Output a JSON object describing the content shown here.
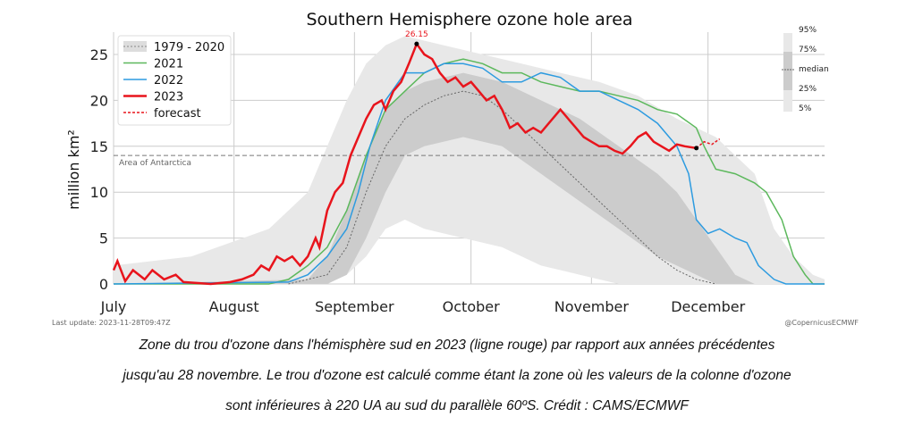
{
  "chart_data": {
    "type": "line",
    "title": "Southern Hemisphere ozone hole area",
    "ylabel": "million km²",
    "xlabel": "",
    "ylim": [
      0,
      27
    ],
    "xlim_days_from_jul1": [
      0,
      183
    ],
    "yticks": [
      0,
      5,
      10,
      15,
      20,
      25
    ],
    "xticks": [
      {
        "label": "July",
        "day": 0
      },
      {
        "label": "August",
        "day": 31
      },
      {
        "label": "September",
        "day": 62
      },
      {
        "label": "October",
        "day": 92
      },
      {
        "label": "November",
        "day": 123
      },
      {
        "label": "December",
        "day": 153
      }
    ],
    "reference_line": {
      "label": "Area of Antarctica",
      "value": 14
    },
    "peak_annotation": {
      "label": "26.15",
      "day": 78,
      "value": 26.15
    },
    "legend": [
      "1979 - 2020",
      "2021",
      "2022",
      "2023",
      "forecast"
    ],
    "percentile_legend": [
      "95%",
      "75%",
      "median",
      "25%",
      "5%"
    ],
    "colors": {
      "2021": "#5cb85c",
      "2022": "#2d9be0",
      "2023": "#e8141c",
      "forecast": "#e8141c",
      "median": "#666666",
      "band_outer": "#e8e8e8",
      "band_inner": "#cccccc"
    },
    "bands": {
      "p95": [
        [
          0,
          2
        ],
        [
          20,
          3
        ],
        [
          40,
          6
        ],
        [
          50,
          10
        ],
        [
          55,
          15
        ],
        [
          60,
          20
        ],
        [
          65,
          24
        ],
        [
          70,
          26
        ],
        [
          75,
          27
        ],
        [
          85,
          26
        ],
        [
          95,
          25
        ],
        [
          105,
          24
        ],
        [
          115,
          23
        ],
        [
          125,
          22
        ],
        [
          135,
          20.5
        ],
        [
          145,
          18
        ],
        [
          155,
          16
        ],
        [
          160,
          14
        ],
        [
          165,
          12
        ],
        [
          170,
          6
        ],
        [
          175,
          3
        ],
        [
          180,
          1
        ],
        [
          183,
          0.5
        ]
      ],
      "p5": [
        [
          0,
          0
        ],
        [
          55,
          0
        ],
        [
          60,
          1
        ],
        [
          65,
          3
        ],
        [
          70,
          6
        ],
        [
          75,
          7
        ],
        [
          80,
          6
        ],
        [
          90,
          5
        ],
        [
          100,
          4
        ],
        [
          110,
          2
        ],
        [
          120,
          1
        ],
        [
          130,
          0
        ],
        [
          183,
          0
        ]
      ],
      "p75": [
        [
          0,
          0
        ],
        [
          50,
          0.5
        ],
        [
          55,
          3
        ],
        [
          60,
          8
        ],
        [
          65,
          14
        ],
        [
          70,
          19
        ],
        [
          75,
          21
        ],
        [
          80,
          22
        ],
        [
          90,
          23
        ],
        [
          100,
          22
        ],
        [
          110,
          20
        ],
        [
          120,
          18
        ],
        [
          130,
          15
        ],
        [
          140,
          12
        ],
        [
          145,
          10
        ],
        [
          150,
          7
        ],
        [
          155,
          4
        ],
        [
          160,
          1
        ],
        [
          165,
          0
        ],
        [
          183,
          0
        ]
      ],
      "p25": [
        [
          0,
          0
        ],
        [
          55,
          0
        ],
        [
          60,
          1
        ],
        [
          65,
          5
        ],
        [
          70,
          10
        ],
        [
          75,
          14
        ],
        [
          80,
          15
        ],
        [
          90,
          16
        ],
        [
          100,
          15
        ],
        [
          110,
          12
        ],
        [
          120,
          9
        ],
        [
          130,
          6
        ],
        [
          140,
          3
        ],
        [
          150,
          1
        ],
        [
          155,
          0
        ],
        [
          183,
          0
        ]
      ],
      "median": [
        [
          45,
          0
        ],
        [
          55,
          1
        ],
        [
          60,
          4
        ],
        [
          65,
          10
        ],
        [
          70,
          15
        ],
        [
          75,
          18
        ],
        [
          80,
          19.5
        ],
        [
          85,
          20.5
        ],
        [
          90,
          21
        ],
        [
          95,
          20.5
        ],
        [
          100,
          19
        ],
        [
          105,
          17
        ],
        [
          110,
          15
        ],
        [
          115,
          13
        ],
        [
          120,
          11
        ],
        [
          125,
          9
        ],
        [
          130,
          7
        ],
        [
          135,
          5
        ],
        [
          140,
          3
        ],
        [
          145,
          1.5
        ],
        [
          150,
          0.5
        ],
        [
          155,
          0
        ]
      ]
    },
    "series": [
      {
        "name": "2021",
        "values": [
          [
            0,
            0
          ],
          [
            40,
            0
          ],
          [
            45,
            0.5
          ],
          [
            50,
            2
          ],
          [
            55,
            4
          ],
          [
            60,
            8
          ],
          [
            65,
            14
          ],
          [
            70,
            19
          ],
          [
            75,
            21
          ],
          [
            80,
            23
          ],
          [
            85,
            24
          ],
          [
            90,
            24.5
          ],
          [
            95,
            24
          ],
          [
            100,
            23
          ],
          [
            105,
            23
          ],
          [
            110,
            22
          ],
          [
            115,
            21.5
          ],
          [
            120,
            21
          ],
          [
            125,
            21
          ],
          [
            130,
            20.5
          ],
          [
            135,
            20
          ],
          [
            140,
            19
          ],
          [
            145,
            18.5
          ],
          [
            150,
            17
          ],
          [
            152,
            15
          ],
          [
            155,
            12.5
          ],
          [
            160,
            12
          ],
          [
            165,
            11
          ],
          [
            168,
            10
          ],
          [
            172,
            7
          ],
          [
            175,
            3
          ],
          [
            178,
            1
          ],
          [
            180,
            0
          ],
          [
            183,
            0
          ]
        ]
      },
      {
        "name": "2022",
        "values": [
          [
            0,
            0
          ],
          [
            45,
            0.2
          ],
          [
            50,
            1
          ],
          [
            55,
            3
          ],
          [
            60,
            6
          ],
          [
            63,
            10
          ],
          [
            66,
            15
          ],
          [
            70,
            20
          ],
          [
            75,
            23
          ],
          [
            80,
            23
          ],
          [
            85,
            24
          ],
          [
            90,
            24
          ],
          [
            95,
            23.5
          ],
          [
            100,
            22
          ],
          [
            105,
            22
          ],
          [
            110,
            23
          ],
          [
            115,
            22.5
          ],
          [
            120,
            21
          ],
          [
            125,
            21
          ],
          [
            130,
            20
          ],
          [
            135,
            19
          ],
          [
            140,
            17.5
          ],
          [
            145,
            15
          ],
          [
            148,
            12
          ],
          [
            150,
            7
          ],
          [
            153,
            5.5
          ],
          [
            156,
            6
          ],
          [
            160,
            5
          ],
          [
            163,
            4.5
          ],
          [
            166,
            2
          ],
          [
            170,
            0.5
          ],
          [
            173,
            0
          ],
          [
            183,
            0
          ]
        ]
      },
      {
        "name": "2023",
        "values": [
          [
            0,
            1.5
          ],
          [
            1,
            2.5
          ],
          [
            3,
            0.3
          ],
          [
            5,
            1.5
          ],
          [
            8,
            0.5
          ],
          [
            10,
            1.5
          ],
          [
            13,
            0.5
          ],
          [
            16,
            1
          ],
          [
            18,
            0.2
          ],
          [
            25,
            0
          ],
          [
            30,
            0.2
          ],
          [
            33,
            0.5
          ],
          [
            36,
            1
          ],
          [
            38,
            2
          ],
          [
            40,
            1.5
          ],
          [
            42,
            3
          ],
          [
            44,
            2.5
          ],
          [
            46,
            3
          ],
          [
            48,
            2
          ],
          [
            50,
            3
          ],
          [
            52,
            5
          ],
          [
            53,
            4
          ],
          [
            55,
            8
          ],
          [
            57,
            10
          ],
          [
            59,
            11
          ],
          [
            61,
            14
          ],
          [
            63,
            16
          ],
          [
            65,
            18
          ],
          [
            67,
            19.5
          ],
          [
            69,
            20
          ],
          [
            70,
            19
          ],
          [
            72,
            21
          ],
          [
            74,
            22
          ],
          [
            76,
            24
          ],
          [
            78,
            26.15
          ],
          [
            80,
            25
          ],
          [
            82,
            24.5
          ],
          [
            84,
            23
          ],
          [
            86,
            22
          ],
          [
            88,
            22.5
          ],
          [
            90,
            21.5
          ],
          [
            92,
            22
          ],
          [
            94,
            21
          ],
          [
            96,
            20
          ],
          [
            98,
            20.5
          ],
          [
            100,
            19
          ],
          [
            102,
            17
          ],
          [
            104,
            17.5
          ],
          [
            106,
            16.5
          ],
          [
            108,
            17
          ],
          [
            110,
            16.5
          ],
          [
            112,
            17.5
          ],
          [
            115,
            19
          ],
          [
            117,
            18
          ],
          [
            119,
            17
          ],
          [
            121,
            16
          ],
          [
            123,
            15.5
          ],
          [
            125,
            15
          ],
          [
            127,
            15
          ],
          [
            129,
            14.5
          ],
          [
            131,
            14.2
          ],
          [
            133,
            15
          ],
          [
            135,
            16
          ],
          [
            137,
            16.5
          ],
          [
            139,
            15.5
          ],
          [
            141,
            15
          ],
          [
            143,
            14.5
          ],
          [
            145,
            15.2
          ],
          [
            147,
            15
          ],
          [
            150,
            14.8
          ]
        ]
      },
      {
        "name": "forecast",
        "values": [
          [
            150,
            14.8
          ],
          [
            152,
            15.5
          ],
          [
            154,
            15.2
          ],
          [
            156,
            15.8
          ]
        ]
      }
    ]
  },
  "footer": {
    "last_update": "Last update: 2023-11-28T09:47Z",
    "credit": "@CopernicusECMWF"
  },
  "caption": [
    "Zone du trou d'ozone dans l'hémisphère sud en 2023 (ligne rouge) par rapport aux années précédentes",
    "jusqu'au 28 novembre. Le trou d'ozone est calculé comme étant la zone où les valeurs de la colonne d'ozone",
    "sont inférieures à 220 UA au sud du parallèle 60ºS. Crédit : CAMS/ECMWF"
  ]
}
